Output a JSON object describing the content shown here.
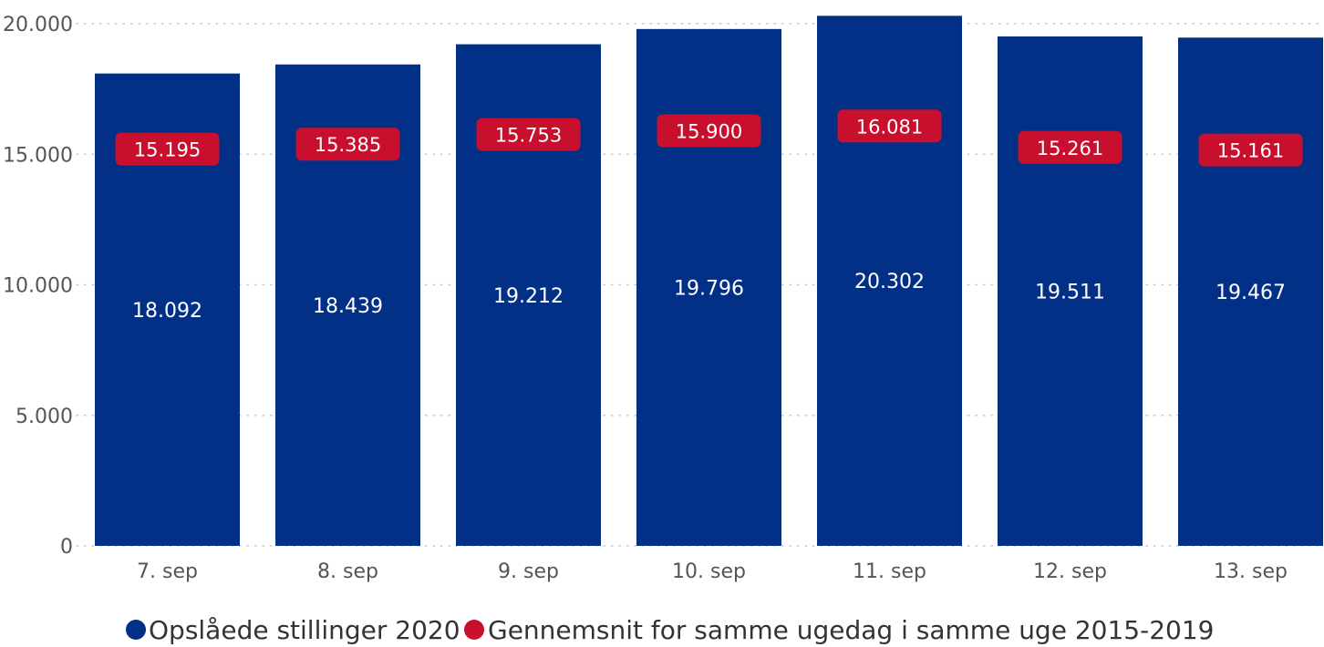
{
  "chart_data": {
    "type": "bar",
    "categories": [
      "7. sep",
      "8. sep",
      "9. sep",
      "10. sep",
      "11. sep",
      "12. sep",
      "13. sep"
    ],
    "series": [
      {
        "name": "Opslåede stillinger 2020",
        "values": [
          18092,
          18439,
          19212,
          19796,
          20302,
          19511,
          19467
        ],
        "labels": [
          "18.092",
          "18.439",
          "19.212",
          "19.796",
          "20.302",
          "19.511",
          "19.467"
        ],
        "color": "#023087"
      },
      {
        "name": "Gennemsnit for samme ugedag i samme uge 2015-2019",
        "values": [
          15195,
          15385,
          15753,
          15900,
          16081,
          15261,
          15161
        ],
        "labels": [
          "15.195",
          "15.385",
          "15.753",
          "15.900",
          "16.081",
          "15.261",
          "15.161"
        ],
        "color": "#C8102E"
      }
    ],
    "y_ticks": [
      0,
      5000,
      10000,
      15000,
      20000
    ],
    "y_tick_labels": [
      "0",
      "5.000",
      "10.000",
      "15.000",
      "20.000"
    ],
    "ylim": [
      0,
      20000
    ],
    "grid": true,
    "legend_position": "bottom"
  }
}
